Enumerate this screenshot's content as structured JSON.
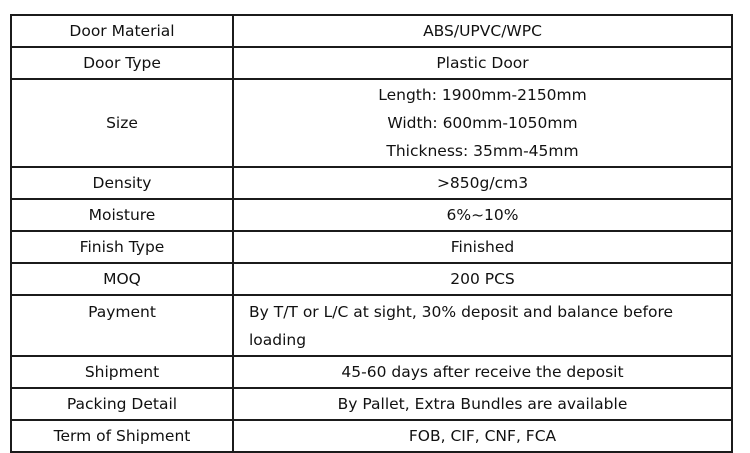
{
  "page": {
    "background_color": "#ffffff",
    "text_color": "#111111"
  },
  "table": {
    "border_color": "#1b1b1b",
    "rows": [
      {
        "label": "Door Material",
        "values": [
          "ABS/UPVC/WPC"
        ],
        "align": "center"
      },
      {
        "label": "Door Type",
        "values": [
          "Plastic Door"
        ],
        "align": "center"
      },
      {
        "label": "Size",
        "values": [
          "Length: 1900mm-2150mm",
          "Width: 600mm-1050mm",
          "Thickness: 35mm-45mm"
        ],
        "align": "center"
      },
      {
        "label": "Density",
        "values": [
          ">850g/cm3"
        ],
        "align": "center"
      },
      {
        "label": "Moisture",
        "values": [
          "6%~10%"
        ],
        "align": "center"
      },
      {
        "label": "Finish Type",
        "values": [
          "Finished"
        ],
        "align": "center"
      },
      {
        "label": "MOQ",
        "values": [
          "200 PCS"
        ],
        "align": "center"
      },
      {
        "label": "Payment",
        "values": [
          "By T/T or L/C at sight, 30% deposit and balance before loading"
        ],
        "align": "left"
      },
      {
        "label": "Shipment",
        "values": [
          "45-60 days after receive the deposit"
        ],
        "align": "center"
      },
      {
        "label": "Packing Detail",
        "values": [
          "By Pallet, Extra Bundles are available"
        ],
        "align": "center"
      },
      {
        "label": "Term of Shipment",
        "values": [
          "FOB, CIF, CNF, FCA"
        ],
        "align": "center"
      }
    ]
  }
}
